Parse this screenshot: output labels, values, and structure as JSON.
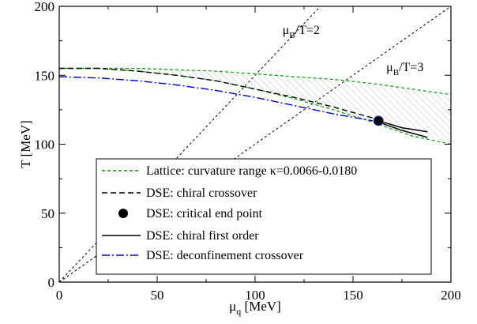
{
  "chart_data": {
    "type": "line",
    "title": "",
    "xlabel": "μq [MeV]",
    "ylabel": "T [MeV]",
    "xlim": [
      0,
      200
    ],
    "ylim": [
      0,
      200
    ],
    "x_ticks": [
      0,
      50,
      100,
      150,
      200
    ],
    "y_ticks": [
      0,
      50,
      100,
      150,
      200
    ],
    "grid": false,
    "legend_position": "bottom-right",
    "annotations": [
      {
        "text_main": "μ",
        "text_sub": "B",
        "text_rest": "/T=2",
        "x": 114,
        "y": 180
      },
      {
        "text_main": "μ",
        "text_sub": "B",
        "text_rest": "/T=3",
        "x": 167,
        "y": 153
      }
    ],
    "series": [
      {
        "name": "Lattice: curvature range κ=0.0066-0.0180",
        "style": "green-dashed-band",
        "color": "#00a000",
        "upper": {
          "x": [
            0,
            20,
            40,
            60,
            80,
            100,
            120,
            140,
            160,
            180,
            200
          ],
          "y": [
            155,
            155,
            155,
            154,
            153,
            151,
            149,
            147,
            144,
            140,
            136
          ]
        },
        "lower": {
          "x": [
            0,
            20,
            40,
            60,
            80,
            100,
            120,
            140,
            160,
            180,
            200
          ],
          "y": [
            155,
            155,
            153,
            150,
            146,
            140,
            133,
            125,
            116,
            106,
            100
          ]
        }
      },
      {
        "name": "DSE: chiral crossover",
        "style": "black-dashed",
        "color": "#000000",
        "x": [
          0,
          20,
          40,
          60,
          80,
          100,
          120,
          140,
          160,
          163
        ],
        "y": [
          155,
          155,
          153,
          150,
          146,
          140,
          134,
          127,
          119,
          117
        ]
      },
      {
        "name": "DSE: critical end point",
        "style": "marker",
        "color": "#000000",
        "x": [
          163
        ],
        "y": [
          117
        ]
      },
      {
        "name": "DSE: chiral first order",
        "style": "black-solid",
        "color": "#000000",
        "branches": [
          {
            "x": [
              163,
              175,
              188
            ],
            "y": [
              117,
              112,
              109
            ]
          },
          {
            "x": [
              163,
              175,
              188
            ],
            "y": [
              116,
              110,
              105
            ]
          }
        ]
      },
      {
        "name": "DSE: deconfinement crossover",
        "style": "blue-dashdot",
        "color": "#0000cc",
        "x": [
          0,
          20,
          40,
          60,
          80,
          100,
          120,
          140,
          160
        ],
        "y": [
          149,
          148,
          146,
          143,
          139,
          134,
          128,
          122,
          117
        ]
      }
    ],
    "reference_lines": [
      {
        "label": "μB/T=2",
        "slope": 1.5,
        "x": [
          0,
          133.33
        ],
        "y": [
          0,
          200
        ]
      },
      {
        "label": "μB/T=3",
        "slope": 1.0,
        "x": [
          0,
          200
        ],
        "y": [
          0,
          200
        ]
      }
    ]
  }
}
